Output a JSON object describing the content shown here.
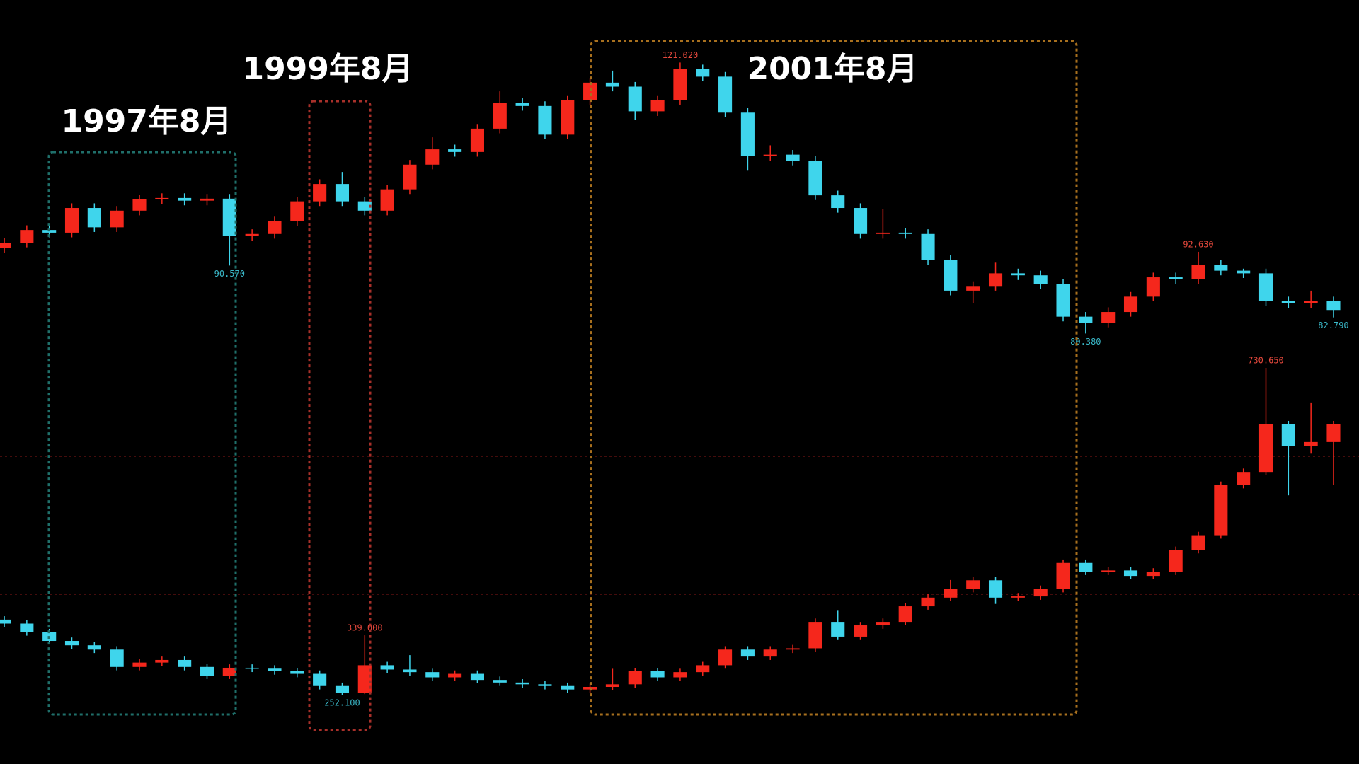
{
  "chart_data": [
    {
      "type": "candlestick",
      "ylim": [
        73.1,
        130.4
      ],
      "up_color": "#f5271c",
      "down_color": "#3fd5ec",
      "high_label_color": "#e5483c",
      "low_label_color": "#3ab8c8",
      "open": [
        93.2,
        94.0,
        95.9,
        95.5,
        99.2,
        96.3,
        98.8,
        100.5,
        100.7,
        100.3,
        100.6,
        95.0,
        95.3,
        97.2,
        100.2,
        102.8,
        100.2,
        98.8,
        102.0,
        105.7,
        108.0,
        107.6,
        111.1,
        115.0,
        114.5,
        110.2,
        115.4,
        118.0,
        117.4,
        113.7,
        115.4,
        120.0,
        118.9,
        113.5,
        107.0,
        107.2,
        106.3,
        101.1,
        99.2,
        95.3,
        95.5,
        95.3,
        91.4,
        86.8,
        87.5,
        89.4,
        89.1,
        87.8,
        82.9,
        82.0,
        83.6,
        85.9,
        88.8,
        88.5,
        90.7,
        89.8,
        89.4,
        85.2,
        84.9,
        85.2
      ],
      "high": [
        94.7,
        96.6,
        96.6,
        99.9,
        99.9,
        99.5,
        101.2,
        101.4,
        101.4,
        101.3,
        101.3,
        96.0,
        97.9,
        100.9,
        103.5,
        104.6,
        100.9,
        102.7,
        106.4,
        109.8,
        108.7,
        111.8,
        116.7,
        115.7,
        115.2,
        116.1,
        118.7,
        119.8,
        118.1,
        116.1,
        121.02,
        120.7,
        119.6,
        114.2,
        108.6,
        107.9,
        107.0,
        101.8,
        99.9,
        99.0,
        96.2,
        96.0,
        92.1,
        88.2,
        91.0,
        90.1,
        89.8,
        88.5,
        83.6,
        84.3,
        86.6,
        89.5,
        89.5,
        92.63,
        91.4,
        90.1,
        90.1,
        85.9,
        86.8,
        85.9
      ],
      "low": [
        92.5,
        93.3,
        94.8,
        94.8,
        95.6,
        95.6,
        98.1,
        99.8,
        99.6,
        99.6,
        90.57,
        94.3,
        94.6,
        96.5,
        99.5,
        99.5,
        98.1,
        98.1,
        101.3,
        105.0,
        106.9,
        106.9,
        110.4,
        113.8,
        109.5,
        109.5,
        114.7,
        116.7,
        112.4,
        113.0,
        114.7,
        118.2,
        112.8,
        104.8,
        106.3,
        105.6,
        100.4,
        98.5,
        94.6,
        94.6,
        94.6,
        90.7,
        86.1,
        84.9,
        86.8,
        88.4,
        87.1,
        82.2,
        80.38,
        81.3,
        82.9,
        85.2,
        87.8,
        87.8,
        89.1,
        88.7,
        84.5,
        84.2,
        84.2,
        82.79
      ],
      "close": [
        94.0,
        95.9,
        95.5,
        99.2,
        96.3,
        98.8,
        100.5,
        100.7,
        100.3,
        100.6,
        95.0,
        95.3,
        97.2,
        100.2,
        102.8,
        100.2,
        98.8,
        102.0,
        105.7,
        108.0,
        107.6,
        111.1,
        115.0,
        114.5,
        110.2,
        115.4,
        118.0,
        117.4,
        113.7,
        115.4,
        120.0,
        118.9,
        113.5,
        107.0,
        107.2,
        106.3,
        101.1,
        99.2,
        95.3,
        95.5,
        95.3,
        91.4,
        86.8,
        87.5,
        89.4,
        89.1,
        87.8,
        82.9,
        82.0,
        83.6,
        85.9,
        88.8,
        88.5,
        90.7,
        89.8,
        89.4,
        85.2,
        84.9,
        85.2,
        83.9
      ],
      "high_labels": {
        "30": "121.020",
        "53": "92.630"
      },
      "low_labels": {
        "10": "90.570",
        "48": "80.380",
        "59": "82.790"
      }
    },
    {
      "type": "candlestick",
      "ylim": [
        150.6,
        787.6
      ],
      "up_color": "#f5271c",
      "down_color": "#3fd5ec",
      "high_label_color": "#e5483c",
      "low_label_color": "#3ab8c8",
      "open": [
        362.0,
        356.2,
        343.5,
        330.8,
        324.4,
        318.1,
        292.7,
        299.1,
        302.9,
        292.7,
        280.0,
        291.5,
        290.2,
        286.4,
        282.6,
        264.8,
        254.6,
        295.2,
        288.9,
        285.1,
        277.5,
        282.6,
        273.7,
        269.9,
        267.3,
        264.8,
        259.7,
        263.5,
        267.3,
        286.4,
        277.5,
        285.1,
        295.2,
        318.1,
        307.9,
        318.1,
        320.0,
        358.7,
        337.1,
        353.6,
        358.7,
        381.5,
        394.2,
        406.9,
        419.6,
        394.2,
        396.0,
        406.9,
        445.0,
        432.3,
        434.0,
        426.0,
        432.3,
        464.0,
        485.6,
        559.2,
        578.2,
        648.0,
        616.3,
        622.0
      ],
      "high": [
        367.0,
        361.2,
        348.5,
        335.8,
        329.4,
        323.1,
        304.1,
        307.9,
        307.9,
        297.7,
        296.5,
        296.5,
        295.2,
        291.4,
        287.6,
        269.8,
        339.0,
        300.2,
        310.0,
        290.1,
        287.6,
        287.6,
        278.7,
        274.9,
        272.3,
        269.8,
        268.5,
        290.0,
        291.4,
        291.4,
        290.1,
        300.2,
        323.1,
        323.1,
        323.1,
        325.0,
        363.7,
        375.0,
        358.6,
        363.7,
        386.5,
        399.2,
        420.0,
        424.6,
        424.6,
        401.0,
        411.9,
        450.0,
        450.0,
        439.0,
        439.0,
        437.3,
        469.0,
        490.6,
        564.2,
        583.2,
        730.65,
        653.0,
        680.0,
        653.0
      ],
      "low": [
        351.2,
        338.5,
        325.8,
        319.4,
        313.1,
        287.7,
        287.7,
        294.1,
        287.7,
        275.0,
        275.0,
        285.2,
        281.4,
        277.6,
        259.8,
        252.1,
        253.0,
        283.9,
        280.1,
        272.5,
        272.5,
        268.7,
        264.9,
        262.3,
        259.8,
        254.7,
        254.7,
        258.5,
        262.3,
        272.5,
        272.5,
        280.1,
        290.2,
        302.9,
        302.9,
        313.1,
        315.0,
        332.1,
        332.1,
        348.6,
        353.7,
        376.5,
        389.2,
        401.9,
        385.0,
        389.2,
        391.0,
        401.9,
        427.3,
        427.3,
        421.0,
        421.0,
        427.3,
        459.0,
        480.6,
        554.2,
        573.2,
        544.0,
        605.0,
        559.0
      ],
      "close": [
        356.2,
        343.5,
        330.8,
        324.4,
        318.1,
        292.7,
        299.1,
        302.9,
        292.7,
        280.0,
        291.5,
        290.2,
        286.4,
        282.6,
        264.8,
        254.6,
        295.2,
        288.9,
        285.1,
        277.5,
        282.6,
        273.7,
        269.9,
        267.3,
        264.8,
        259.7,
        263.5,
        267.3,
        286.4,
        277.5,
        285.1,
        295.2,
        318.1,
        307.9,
        318.1,
        320.0,
        358.7,
        337.1,
        353.6,
        358.7,
        381.5,
        394.2,
        406.9,
        419.6,
        394.2,
        396.0,
        406.9,
        445.0,
        432.3,
        434.0,
        426.0,
        432.3,
        464.0,
        485.6,
        559.2,
        578.2,
        648.0,
        616.3,
        622.0,
        648.0
      ],
      "high_labels": {
        "16": "339.000",
        "56": "730.650"
      },
      "low_labels": {
        "15": "252.100"
      }
    }
  ],
  "annotations": [
    {
      "text": "1997年8月",
      "color": "#1f6f6a"
    },
    {
      "text": "1999年8月",
      "color": "#a8302a"
    },
    {
      "text": "2001年8月",
      "color": "#a8701e"
    }
  ]
}
